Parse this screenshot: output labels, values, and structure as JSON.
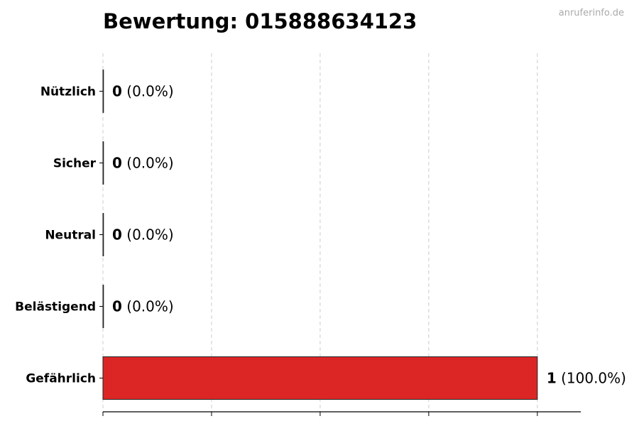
{
  "chart_data": {
    "type": "bar",
    "orientation": "horizontal",
    "title": "Bewertung: 015888634123",
    "watermark": "anruferinfo.de",
    "categories": [
      "Nützlich",
      "Sicher",
      "Neutral",
      "Belästigend",
      "Gefährlich"
    ],
    "values": [
      0,
      0,
      0,
      0,
      1
    ],
    "value_labels": [
      "0",
      "0",
      "0",
      "0",
      "1"
    ],
    "percent_labels": [
      "(0.0%)",
      "(0.0%)",
      "(0.0%)",
      "(0.0%)",
      "(100.0%)"
    ],
    "xlim": [
      0,
      1.1
    ],
    "xticks": [
      0,
      0.25,
      0.5,
      0.75,
      1
    ],
    "grid": true,
    "bar_color": "#dc2626",
    "xlabel": "",
    "ylabel": ""
  }
}
